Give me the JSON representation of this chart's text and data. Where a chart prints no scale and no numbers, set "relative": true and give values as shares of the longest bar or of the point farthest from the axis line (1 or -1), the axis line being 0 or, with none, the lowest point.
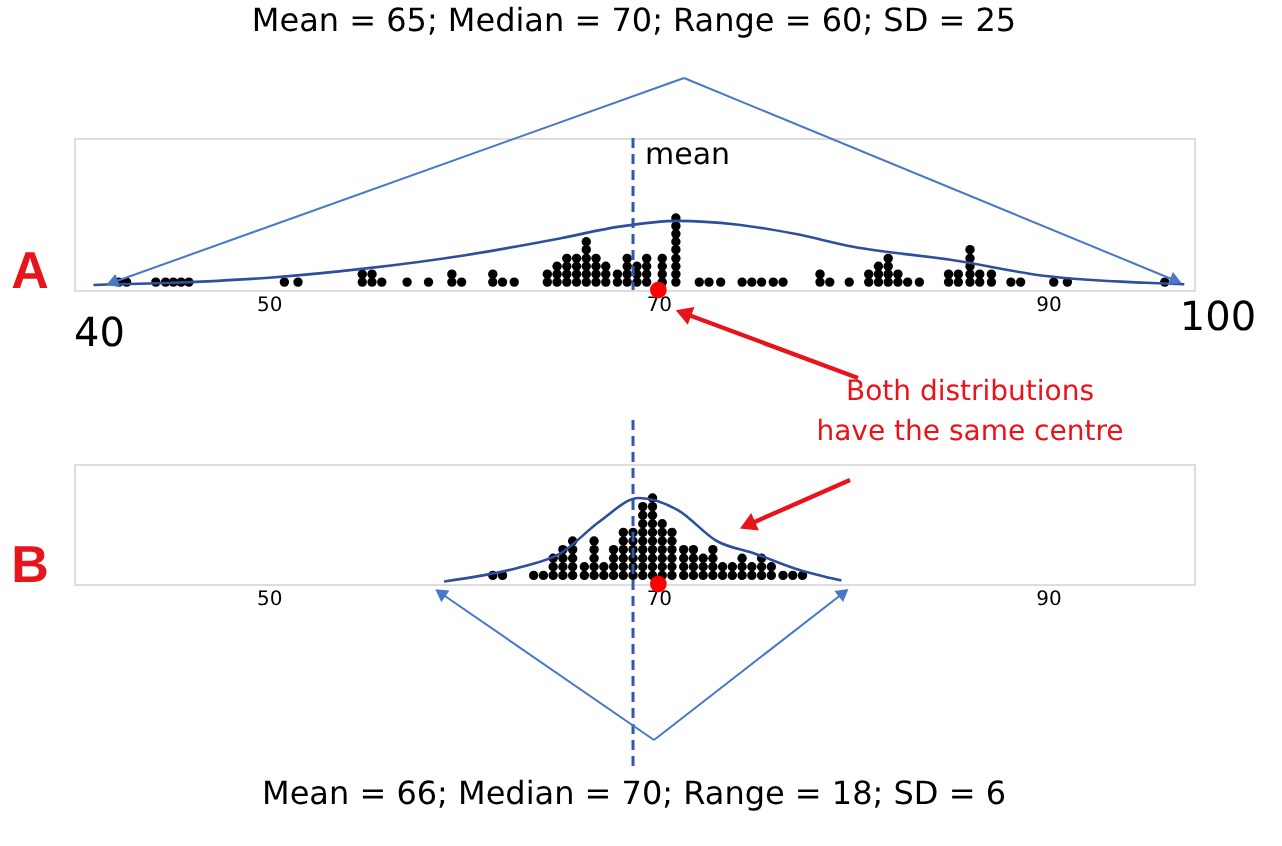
{
  "chart_data": [
    {
      "type": "scatter",
      "title": "Mean = 65; Median = 70; Range = 60; SD = 25",
      "ylabel": "A",
      "relative": true,
      "xlim": [
        40,
        97.5
      ],
      "xticks": [
        50,
        70,
        90
      ],
      "tick_labels": "x",
      "grid": false,
      "series": [
        {
          "color": "#000000",
          "x": [
            42.3,
            42.7,
            44.2,
            44.7,
            45.1,
            45.5,
            45.9,
            50.8,
            51.5,
            54.8,
            54.8,
            55.3,
            55.3,
            55.8,
            57.1,
            58.2,
            59.4,
            59.4,
            59.9,
            61.5,
            61.5,
            62.0,
            62.6,
            64.3,
            64.3,
            64.8,
            64.8,
            64.8,
            65.3,
            65.3,
            65.3,
            65.3,
            65.8,
            65.8,
            65.8,
            65.8,
            66.3,
            66.3,
            66.3,
            66.3,
            66.3,
            66.3,
            66.8,
            66.8,
            66.8,
            66.8,
            67.3,
            67.3,
            67.3,
            67.9,
            67.9,
            68.4,
            68.4,
            68.4,
            68.4,
            68.9,
            68.9,
            68.9,
            69.4,
            69.4,
            69.4,
            69.4,
            70.2,
            70.2,
            70.2,
            70.2,
            70.9,
            70.9,
            70.9,
            70.9,
            70.9,
            70.9,
            70.9,
            70.9,
            70.9,
            72.1,
            72.6,
            73.2,
            74.3,
            74.8,
            75.3,
            75.9,
            76.4,
            78.3,
            78.3,
            78.8,
            79.8,
            80.8,
            80.8,
            81.3,
            81.3,
            81.3,
            81.8,
            81.8,
            81.8,
            81.8,
            82.3,
            82.3,
            82.8,
            83.4,
            84.9,
            84.9,
            85.4,
            85.4,
            86.0,
            86.0,
            86.0,
            86.0,
            86.0,
            86.5,
            86.5,
            87.1,
            87.1,
            88.1,
            88.6,
            90.3,
            91.0,
            96.0
          ],
          "values": [
            0.11,
            0.11,
            0.11,
            0.11,
            0.11,
            0.11,
            0.11,
            0.11,
            0.11,
            0.11,
            0.22,
            0.11,
            0.22,
            0.11,
            0.11,
            0.11,
            0.11,
            0.22,
            0.11,
            0.11,
            0.22,
            0.11,
            0.11,
            0.11,
            0.22,
            0.11,
            0.22,
            0.33,
            0.11,
            0.22,
            0.33,
            0.44,
            0.11,
            0.22,
            0.33,
            0.44,
            0.11,
            0.22,
            0.33,
            0.44,
            0.56,
            0.67,
            0.11,
            0.22,
            0.33,
            0.44,
            0.11,
            0.22,
            0.33,
            0.11,
            0.22,
            0.11,
            0.22,
            0.33,
            0.44,
            0.11,
            0.22,
            0.33,
            0.11,
            0.22,
            0.33,
            0.44,
            0.11,
            0.22,
            0.33,
            0.44,
            0.11,
            0.22,
            0.33,
            0.44,
            0.56,
            0.67,
            0.78,
            0.89,
            1,
            0.11,
            0.11,
            0.11,
            0.11,
            0.11,
            0.11,
            0.11,
            0.11,
            0.11,
            0.22,
            0.11,
            0.11,
            0.11,
            0.22,
            0.11,
            0.22,
            0.33,
            0.11,
            0.22,
            0.33,
            0.44,
            0.11,
            0.22,
            0.11,
            0.11,
            0.11,
            0.22,
            0.11,
            0.22,
            0.11,
            0.22,
            0.33,
            0.44,
            0.56,
            0.11,
            0.22,
            0.11,
            0.22,
            0.11,
            0.11,
            0.11,
            0.11,
            0.11
          ]
        },
        {
          "type": "line",
          "color": "#2e4f9c",
          "x": [
            41,
            45,
            50,
            55,
            60,
            65,
            68,
            71,
            74,
            77,
            80,
            85,
            90,
            95,
            97
          ],
          "values": [
            0.07,
            0.1,
            0.17,
            0.3,
            0.48,
            0.72,
            0.88,
            0.96,
            0.91,
            0.78,
            0.6,
            0.42,
            0.19,
            0.1,
            0.08
          ]
        },
        {
          "color": "#ff0000",
          "x": [
            70
          ],
          "values": [
            0
          ]
        }
      ],
      "ref_lines": [
        {
          "axis": "x",
          "value": 68.7,
          "label": "mean",
          "color": "#2e5aa8",
          "line_style": "dashed"
        }
      ],
      "annotations": [
        "40",
        "100",
        "Both distributions have the same centre"
      ]
    },
    {
      "type": "scatter",
      "title": "Mean = 66; Median = 70; Range = 18; SD = 6",
      "ylabel": "B",
      "relative": true,
      "xlim": [
        40,
        97.5
      ],
      "xticks": [
        50,
        70,
        90
      ],
      "tick_labels": "x",
      "grid": false,
      "series": [
        {
          "color": "#000000",
          "x": [
            61.5,
            62.0,
            63.6,
            64.1,
            64.6,
            64.6,
            64.6,
            65.1,
            65.1,
            65.1,
            65.1,
            65.6,
            65.6,
            65.6,
            65.6,
            65.6,
            66.2,
            66.2,
            66.7,
            66.7,
            66.7,
            66.7,
            66.7,
            67.2,
            67.2,
            67.7,
            67.7,
            67.7,
            67.7,
            68.2,
            68.2,
            68.2,
            68.2,
            68.2,
            68.2,
            68.7,
            68.7,
            68.7,
            68.7,
            68.7,
            68.7,
            69.2,
            69.2,
            69.2,
            69.2,
            69.2,
            69.2,
            69.2,
            69.2,
            69.2,
            69.7,
            69.7,
            69.7,
            69.7,
            69.7,
            69.7,
            69.7,
            69.7,
            69.7,
            69.7,
            70.2,
            70.2,
            70.2,
            70.2,
            70.2,
            70.2,
            70.2,
            70.7,
            70.7,
            70.7,
            70.7,
            70.7,
            70.7,
            71.3,
            71.3,
            71.3,
            71.3,
            71.8,
            71.8,
            71.8,
            71.8,
            72.3,
            72.3,
            72.3,
            72.8,
            72.8,
            72.8,
            72.8,
            73.3,
            73.3,
            73.8,
            73.8,
            74.3,
            74.3,
            74.3,
            74.8,
            74.8,
            75.3,
            75.3,
            75.3,
            75.8,
            75.8,
            76.4,
            76.9,
            77.4
          ],
          "values": [
            0.1,
            0.1,
            0.1,
            0.1,
            0.1,
            0.2,
            0.3,
            0.1,
            0.2,
            0.3,
            0.4,
            0.1,
            0.2,
            0.3,
            0.4,
            0.5,
            0.1,
            0.2,
            0.1,
            0.2,
            0.3,
            0.4,
            0.5,
            0.1,
            0.2,
            0.1,
            0.2,
            0.3,
            0.4,
            0.1,
            0.2,
            0.3,
            0.4,
            0.5,
            0.6,
            0.1,
            0.2,
            0.3,
            0.4,
            0.5,
            0.6,
            0.1,
            0.2,
            0.3,
            0.4,
            0.5,
            0.6,
            0.7,
            0.8,
            0.9,
            0.1,
            0.2,
            0.3,
            0.4,
            0.5,
            0.6,
            0.7,
            0.8,
            0.9,
            1,
            0.1,
            0.2,
            0.3,
            0.4,
            0.5,
            0.6,
            0.7,
            0.1,
            0.2,
            0.3,
            0.4,
            0.5,
            0.6,
            0.1,
            0.2,
            0.3,
            0.4,
            0.1,
            0.2,
            0.3,
            0.4,
            0.1,
            0.2,
            0.3,
            0.1,
            0.2,
            0.3,
            0.4,
            0.1,
            0.2,
            0.1,
            0.2,
            0.1,
            0.2,
            0.3,
            0.1,
            0.2,
            0.1,
            0.2,
            0.3,
            0.1,
            0.2,
            0.1,
            0.1,
            0.1
          ]
        },
        {
          "type": "line",
          "color": "#2e4f9c",
          "x": [
            59,
            61,
            63,
            65,
            67,
            69,
            71,
            73,
            75,
            77,
            79.4
          ],
          "values": [
            0.03,
            0.1,
            0.2,
            0.36,
            0.73,
            1,
            0.86,
            0.5,
            0.35,
            0.18,
            0.04
          ]
        },
        {
          "color": "#ff0000",
          "x": [
            70
          ],
          "values": [
            0
          ]
        }
      ],
      "ref_lines": [
        {
          "axis": "x",
          "value": 68.7,
          "color": "#2e5aa8",
          "line_style": "dashed"
        }
      ]
    }
  ]
}
